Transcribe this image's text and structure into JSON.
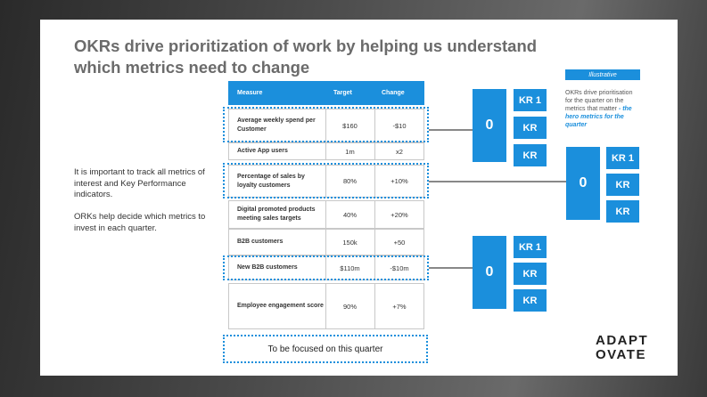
{
  "header": {
    "title": "OKRs drive prioritization of work by helping us understand which metrics need to change"
  },
  "intro": [
    "It is important to track all metrics of interest and Key Performance indicators.",
    "ORKs help decide which metrics to invest in each quarter."
  ],
  "table": {
    "header": [
      "Measure",
      "Target",
      "Change"
    ],
    "rows": [
      [
        "Average weekly spend per Customer",
        "$160",
        "-$10"
      ],
      [
        "Active App users",
        "1m",
        "x2"
      ],
      [
        "Percentage of sales by loyalty customers",
        "80%",
        "+10%"
      ],
      [
        "Digital promoted products meeting sales targets",
        "40%",
        "+20%"
      ],
      [
        "B2B customers",
        "150k",
        "+50"
      ],
      [
        "New B2B customers",
        "$110m",
        "-$10m"
      ],
      [
        "Employee engagement score",
        "90%",
        "+7%"
      ]
    ]
  },
  "okr_groups": [
    {
      "objective": "0",
      "key_results": [
        "KR 1",
        "KR",
        "KR"
      ]
    },
    {
      "objective": "0",
      "key_results": [
        "KR 1",
        "KR",
        "KR"
      ]
    },
    {
      "objective": "0",
      "key_results": [
        "KR 1",
        "KR",
        "KR"
      ]
    }
  ],
  "illustrative": "Illustrative",
  "note": {
    "text": "OKRs drive prioritisation for the quarter on the metrics that matter",
    "highlight": "- the hero metrics for the quarter"
  },
  "legend": "To be focused on this quarter",
  "logo": [
    "ADAPT",
    "OVATE"
  ]
}
